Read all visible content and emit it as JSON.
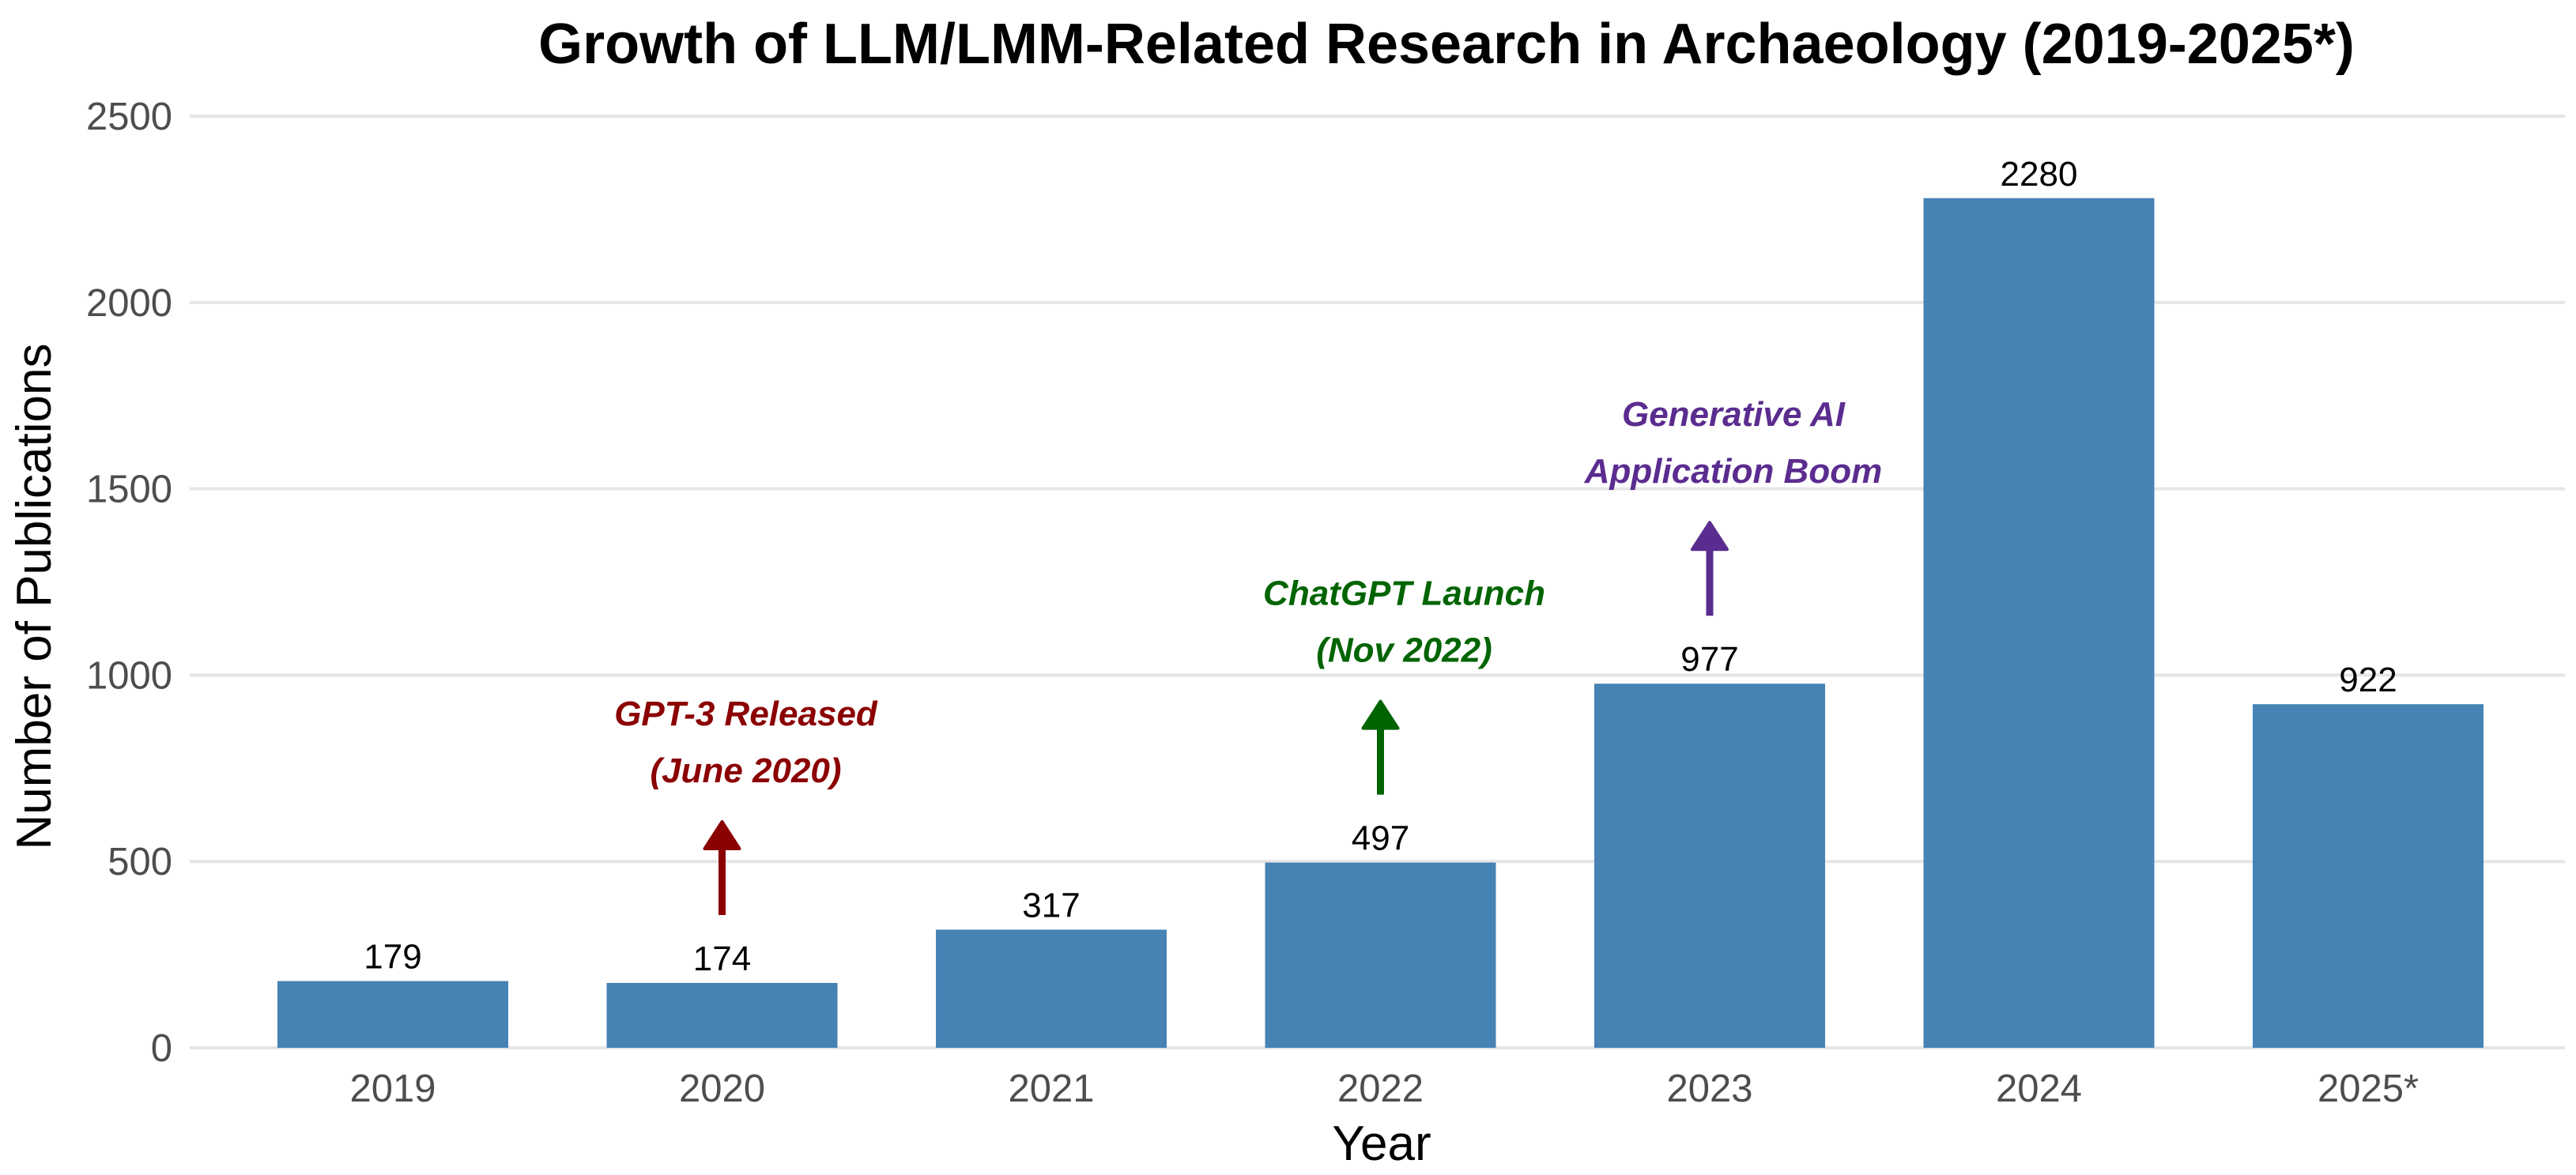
{
  "chart_data": {
    "type": "bar",
    "title": "Growth of LLM/LMM-Related Research in Archaeology (2019-2025*)",
    "xlabel": "Year",
    "ylabel": "Number of Publications",
    "categories": [
      "2019",
      "2020",
      "2021",
      "2022",
      "2023",
      "2024",
      "2025*"
    ],
    "values": [
      179,
      174,
      317,
      497,
      977,
      2280,
      922
    ],
    "ylim": [
      0,
      2500
    ],
    "yticks": [
      0,
      500,
      1000,
      1500,
      2000,
      2500
    ],
    "grid": true,
    "bar_color": "#4682b4",
    "annotations": [
      {
        "category": "2020",
        "lines": [
          "GPT-3 Released",
          "(June 2020)"
        ],
        "color": "#8b0000"
      },
      {
        "category": "2022",
        "lines": [
          "ChatGPT Launch",
          "(Nov 2022)"
        ],
        "color": "#006400"
      },
      {
        "category": "2023",
        "lines": [
          "Generative AI",
          "Application Boom"
        ],
        "color": "#5b2c8f"
      }
    ]
  }
}
